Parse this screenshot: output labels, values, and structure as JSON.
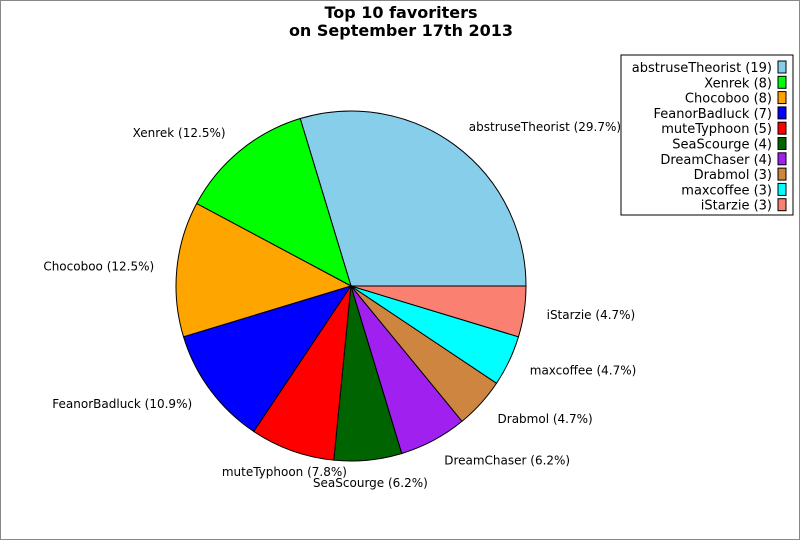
{
  "chart_data": {
    "type": "pie",
    "title": [
      "Top 10 favoriters",
      "on September 17th 2013"
    ],
    "legend_position": "top-right",
    "start_angle_deg": 0,
    "direction": "counterclockwise",
    "slices": [
      {
        "name": "abstruseTheorist",
        "value": 19,
        "percent": "29.7%",
        "color": "#87ceeb"
      },
      {
        "name": "Xenrek",
        "value": 8,
        "percent": "12.5%",
        "color": "#00ff00"
      },
      {
        "name": "Chocoboo",
        "value": 8,
        "percent": "12.5%",
        "color": "#ffa500"
      },
      {
        "name": "FeanorBadluck",
        "value": 7,
        "percent": "10.9%",
        "color": "#0000ff"
      },
      {
        "name": "muteTyphoon",
        "value": 5,
        "percent": "7.8%",
        "color": "#ff0000"
      },
      {
        "name": "SeaScourge",
        "value": 4,
        "percent": "6.2%",
        "color": "#006400"
      },
      {
        "name": "DreamChaser",
        "value": 4,
        "percent": "6.2%",
        "color": "#a020f0"
      },
      {
        "name": "Drabmol",
        "value": 3,
        "percent": "4.7%",
        "color": "#cd853f"
      },
      {
        "name": "maxcoffee",
        "value": 3,
        "percent": "4.7%",
        "color": "#00ffff"
      },
      {
        "name": "iStarzie",
        "value": 3,
        "percent": "4.7%",
        "color": "#fa8072"
      }
    ]
  }
}
